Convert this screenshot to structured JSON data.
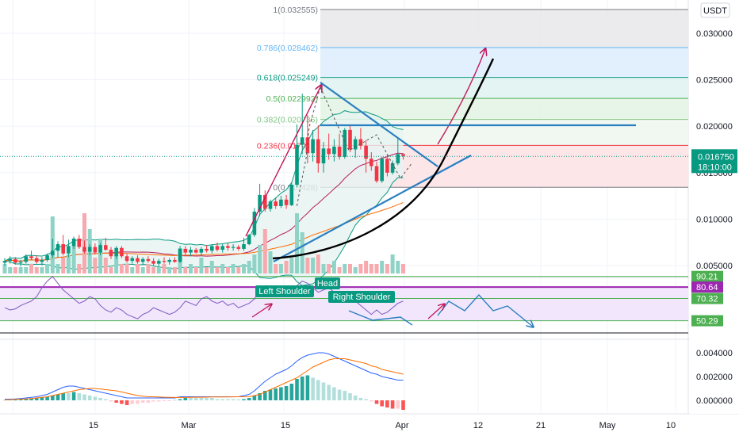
{
  "chart_data": {
    "type": "candlestick",
    "currency": "USDT",
    "price_axis": {
      "ticks": [
        "0.030000",
        "0.025000",
        "0.020000",
        "0.015000",
        "0.010000",
        "0.005000"
      ],
      "values": [
        0.03,
        0.025,
        0.02,
        0.015,
        0.01,
        0.005
      ],
      "range": [
        0.0035,
        0.0335
      ]
    },
    "time_axis": {
      "labels": [
        "15",
        "Mar",
        "15",
        "Apr",
        "12",
        "21",
        "May",
        "10"
      ]
    },
    "current_price": {
      "value": "0.016750",
      "countdown": "18:10:00",
      "price": 0.01675
    },
    "fib_levels": [
      {
        "label": "1(0.032555)",
        "price": 0.032555,
        "color": "#787b86"
      },
      {
        "label": "0.786(0.028462)",
        "price": 0.028462,
        "color": "#64b5f6"
      },
      {
        "label": "0.618(0.025249)",
        "price": 0.025249,
        "color": "#089981"
      },
      {
        "label": "0.5(0.022992)",
        "price": 0.022992,
        "color": "#4caf50"
      },
      {
        "label": "0.382(0.020736)",
        "price": 0.020736,
        "color": "#81c784"
      },
      {
        "label": "0.236(0.017942)",
        "price": 0.017942,
        "color": "#f23645"
      },
      {
        "label": "0(0.013428)",
        "price": 0.013428,
        "color": "#787b86"
      }
    ],
    "candles": [
      [
        0.0053,
        0.0058,
        0.005,
        0.0055
      ],
      [
        0.0055,
        0.006,
        0.0052,
        0.0057
      ],
      [
        0.0057,
        0.0059,
        0.0051,
        0.0053
      ],
      [
        0.0053,
        0.0056,
        0.0049,
        0.0054
      ],
      [
        0.0054,
        0.0062,
        0.0052,
        0.006
      ],
      [
        0.006,
        0.0066,
        0.0056,
        0.0058
      ],
      [
        0.0058,
        0.0061,
        0.0052,
        0.0054
      ],
      [
        0.0054,
        0.0059,
        0.005,
        0.0056
      ],
      [
        0.0056,
        0.0063,
        0.0054,
        0.0061
      ],
      [
        0.0061,
        0.0079,
        0.0058,
        0.0066
      ],
      [
        0.0066,
        0.0076,
        0.0059,
        0.0073
      ],
      [
        0.0073,
        0.0083,
        0.0061,
        0.0063
      ],
      [
        0.0063,
        0.0078,
        0.0059,
        0.0071
      ],
      [
        0.0071,
        0.0081,
        0.0068,
        0.0079
      ],
      [
        0.0079,
        0.0083,
        0.0068,
        0.007
      ],
      [
        0.007,
        0.0077,
        0.0063,
        0.0065
      ],
      [
        0.0065,
        0.0073,
        0.0061,
        0.007
      ],
      [
        0.007,
        0.0074,
        0.0062,
        0.0064
      ],
      [
        0.0064,
        0.0074,
        0.0061,
        0.0072
      ],
      [
        0.0072,
        0.008,
        0.0066,
        0.0067
      ],
      [
        0.0067,
        0.007,
        0.0057,
        0.006
      ],
      [
        0.006,
        0.0071,
        0.0057,
        0.0069
      ],
      [
        0.0069,
        0.0071,
        0.0058,
        0.006
      ],
      [
        0.006,
        0.0063,
        0.0053,
        0.0055
      ],
      [
        0.0055,
        0.006,
        0.0052,
        0.0058
      ],
      [
        0.0058,
        0.0061,
        0.0052,
        0.0054
      ],
      [
        0.0054,
        0.0059,
        0.0051,
        0.0057
      ],
      [
        0.0057,
        0.006,
        0.0053,
        0.0055
      ],
      [
        0.0055,
        0.0058,
        0.005,
        0.0052
      ],
      [
        0.0052,
        0.0057,
        0.0049,
        0.0055
      ],
      [
        0.0055,
        0.0059,
        0.0052,
        0.0054
      ],
      [
        0.0054,
        0.0058,
        0.0051,
        0.0056
      ],
      [
        0.0056,
        0.0059,
        0.0053,
        0.0054
      ],
      [
        0.0054,
        0.0071,
        0.0053,
        0.0068
      ],
      [
        0.0068,
        0.0071,
        0.0061,
        0.0064
      ],
      [
        0.0064,
        0.007,
        0.006,
        0.0067
      ],
      [
        0.0067,
        0.0069,
        0.0063,
        0.0064
      ],
      [
        0.0064,
        0.007,
        0.0061,
        0.0068
      ],
      [
        0.0068,
        0.0072,
        0.0064,
        0.0066
      ],
      [
        0.0066,
        0.0073,
        0.0063,
        0.0071
      ],
      [
        0.0071,
        0.0075,
        0.0065,
        0.0067
      ],
      [
        0.0067,
        0.0073,
        0.0064,
        0.0071
      ],
      [
        0.0071,
        0.0074,
        0.0066,
        0.0069
      ],
      [
        0.0069,
        0.0073,
        0.0066,
        0.007
      ],
      [
        0.007,
        0.0072,
        0.0066,
        0.0068
      ],
      [
        0.0068,
        0.008,
        0.0066,
        0.0073
      ],
      [
        0.0073,
        0.0084,
        0.0072,
        0.0083
      ],
      [
        0.0083,
        0.0112,
        0.0081,
        0.0108
      ],
      [
        0.0108,
        0.0138,
        0.0103,
        0.0126
      ],
      [
        0.0126,
        0.0131,
        0.0108,
        0.0111
      ],
      [
        0.0111,
        0.0121,
        0.0108,
        0.0119
      ],
      [
        0.0119,
        0.0123,
        0.0111,
        0.0114
      ],
      [
        0.0114,
        0.0125,
        0.0112,
        0.0121
      ],
      [
        0.0121,
        0.0126,
        0.0111,
        0.0115
      ],
      [
        0.0115,
        0.0139,
        0.0114,
        0.0137
      ],
      [
        0.0137,
        0.0202,
        0.0134,
        0.018
      ],
      [
        0.018,
        0.0235,
        0.017,
        0.0188
      ],
      [
        0.0188,
        0.0212,
        0.016,
        0.0171
      ],
      [
        0.0171,
        0.0196,
        0.0162,
        0.0186
      ],
      [
        0.0186,
        0.0201,
        0.015,
        0.016
      ],
      [
        0.016,
        0.0183,
        0.015,
        0.0176
      ],
      [
        0.0176,
        0.0192,
        0.0164,
        0.017
      ],
      [
        0.017,
        0.0186,
        0.0162,
        0.0178
      ],
      [
        0.0178,
        0.0192,
        0.0164,
        0.0167
      ],
      [
        0.0167,
        0.0198,
        0.0165,
        0.0196
      ],
      [
        0.0196,
        0.0201,
        0.0172,
        0.0175
      ],
      [
        0.0175,
        0.0189,
        0.0166,
        0.0186
      ],
      [
        0.0186,
        0.0198,
        0.0175,
        0.0179
      ],
      [
        0.0179,
        0.0185,
        0.015,
        0.0165
      ],
      [
        0.0165,
        0.0172,
        0.0152,
        0.0157
      ],
      [
        0.0157,
        0.0162,
        0.0139,
        0.0141
      ],
      [
        0.0141,
        0.0167,
        0.0139,
        0.0165
      ],
      [
        0.0165,
        0.017,
        0.0146,
        0.015
      ],
      [
        0.015,
        0.0163,
        0.0148,
        0.016
      ],
      [
        0.016,
        0.0188,
        0.0158,
        0.017
      ],
      [
        0.017,
        0.0171,
        0.0164,
        0.0168
      ]
    ],
    "volume": [
      0.3,
      0.2,
      0.2,
      0.2,
      0.2,
      0.3,
      0.2,
      0.2,
      0.3,
      1.8,
      0.3,
      0.5,
      0.6,
      0.9,
      0.3,
      1.9,
      1.4,
      0.5,
      1.1,
      0.5,
      0.2,
      0.6,
      0.3,
      0.3,
      0.2,
      0.3,
      0.2,
      0.3,
      0.2,
      0.2,
      0.3,
      0.2,
      0.2,
      0.8,
      0.2,
      0.3,
      0.2,
      0.5,
      0.2,
      0.4,
      0.2,
      0.3,
      0.2,
      0.3,
      0.2,
      0.3,
      0.4,
      0.6,
      0.9,
      1.4,
      0.7,
      0.3,
      0.3,
      0.4,
      0.5,
      1.9,
      1.3,
      0.5,
      0.5,
      0.6,
      0.3,
      0.3,
      0.4,
      0.2,
      0.3,
      0.3,
      0.2,
      0.3,
      0.4,
      0.3,
      0.3,
      0.4,
      0.3,
      0.6,
      0.4,
      0.3
    ],
    "rsi": {
      "levels": [
        "90.21",
        "80.64",
        "70.32",
        "50.29"
      ],
      "labels": [
        "Left Shoulder",
        "Head",
        "Right Shoulder"
      ]
    },
    "macd": {
      "ticks": [
        "0.004000",
        "0.002000",
        "0.000000"
      ],
      "values": [
        0.004,
        0.002,
        0.0
      ]
    }
  }
}
